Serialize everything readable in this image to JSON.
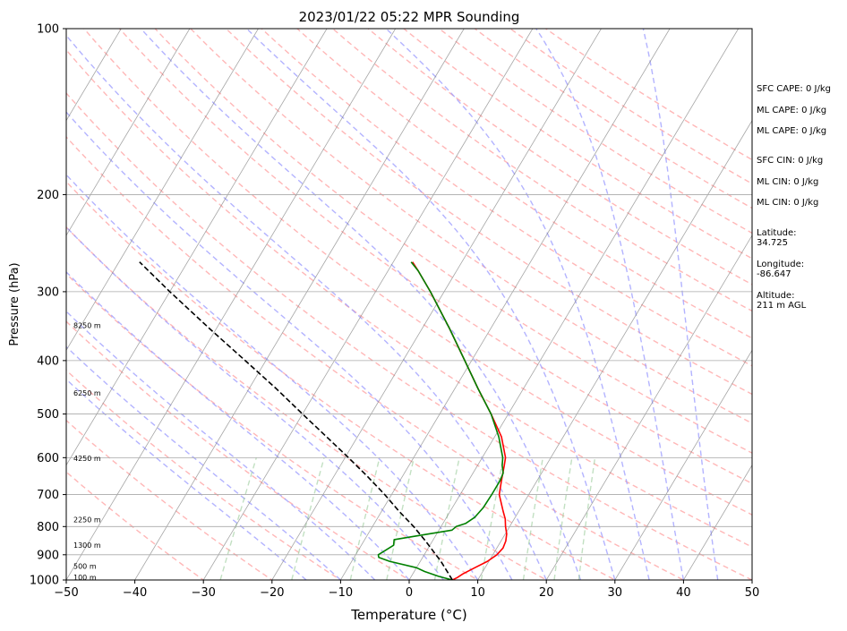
{
  "chart_data": {
    "type": "skew-t log-p sounding",
    "title": "2023/01/22 05:22 MPR Sounding",
    "xlabel": "Temperature (°C)",
    "ylabel": "Pressure (hPa)",
    "xlim": [
      -50,
      50
    ],
    "ylim": [
      1000,
      100
    ],
    "y_scale": "log",
    "grid": true,
    "x_ticks": [
      "−50",
      "−40",
      "−30",
      "−20",
      "−10",
      "0",
      "10",
      "20",
      "30",
      "40",
      "50"
    ],
    "y_ticks": [
      "100",
      "200",
      "300",
      "400",
      "500",
      "600",
      "700",
      "800",
      "900",
      "1000"
    ],
    "series": [
      {
        "color": "#ff0000",
        "points": [
          [
            1000,
            6.3
          ],
          [
            990,
            6.8
          ],
          [
            975,
            7.3
          ],
          [
            950,
            8.5
          ],
          [
            925,
            9.8
          ],
          [
            900,
            10.6
          ],
          [
            875,
            10.9
          ],
          [
            850,
            10.7
          ],
          [
            825,
            10.2
          ],
          [
            800,
            9.4
          ],
          [
            775,
            8.7
          ],
          [
            750,
            7.7
          ],
          [
            700,
            5.7
          ],
          [
            660,
            4.8
          ],
          [
            620,
            3.9
          ],
          [
            600,
            3.4
          ],
          [
            550,
            1.0
          ],
          [
            500,
            -2.5
          ],
          [
            450,
            -6.6
          ],
          [
            400,
            -11.0
          ],
          [
            350,
            -16.0
          ],
          [
            300,
            -22.0
          ],
          [
            275,
            -25.6
          ],
          [
            265,
            -27.2
          ]
        ]
      },
      {
        "color": "#008000",
        "points": [
          [
            1000,
            6.3
          ],
          [
            985,
            4.0
          ],
          [
            965,
            1.5
          ],
          [
            950,
            0.0
          ],
          [
            925,
            -4.5
          ],
          [
            910,
            -6.4
          ],
          [
            900,
            -6.7
          ],
          [
            885,
            -6.1
          ],
          [
            865,
            -5.3
          ],
          [
            845,
            -5.7
          ],
          [
            835,
            -3.5
          ],
          [
            820,
            0.0
          ],
          [
            812,
            1.9
          ],
          [
            800,
            2.2
          ],
          [
            790,
            3.3
          ],
          [
            770,
            4.1
          ],
          [
            740,
            4.5
          ],
          [
            700,
            4.6
          ],
          [
            660,
            4.6
          ],
          [
            640,
            4.4
          ],
          [
            620,
            3.6
          ],
          [
            600,
            3.0
          ],
          [
            550,
            0.6
          ],
          [
            500,
            -2.5
          ],
          [
            450,
            -6.6
          ],
          [
            400,
            -11.0
          ],
          [
            350,
            -16.0
          ],
          [
            300,
            -22.0
          ],
          [
            275,
            -25.6
          ],
          [
            265,
            -27.4
          ]
        ]
      },
      {
        "color": "#000000",
        "style": "dashed",
        "points": [
          [
            1000,
            6.3
          ],
          [
            925,
            3.0
          ],
          [
            850,
            -1.0
          ],
          [
            800,
            -4.0
          ],
          [
            750,
            -7.5
          ],
          [
            700,
            -11.0
          ],
          [
            650,
            -15.0
          ],
          [
            600,
            -19.5
          ],
          [
            550,
            -24.5
          ],
          [
            500,
            -30.0
          ],
          [
            450,
            -36.0
          ],
          [
            400,
            -43.0
          ],
          [
            350,
            -51.0
          ],
          [
            300,
            -60.0
          ],
          [
            265,
            -67.0
          ]
        ]
      }
    ],
    "height_labels": [
      {
        "label": "100 m",
        "p": 988
      },
      {
        "label": "500 m",
        "p": 944
      },
      {
        "label": "1300 m",
        "p": 865
      },
      {
        "label": "2250 m",
        "p": 777
      },
      {
        "label": "4250 m",
        "p": 601
      },
      {
        "label": "6250 m",
        "p": 458
      },
      {
        "label": "8250 m",
        "p": 345
      }
    ],
    "indices": [
      "SFC CAPE: 0 J/kg",
      "ML CAPE: 0 J/kg",
      "ML CAPE: 0 J/kg",
      "SFC CIN: 0 J/kg",
      "ML CIN: 0 J/kg",
      "ML CIN: 0 J/kg"
    ],
    "location": [
      {
        "label": "Latitude:",
        "value": "34.725"
      },
      {
        "label": "Longitude:",
        "value": "-86.647"
      },
      {
        "label": "Altitude:",
        "value": "211 m AGL"
      }
    ],
    "colors": {
      "isotherm": "#808080",
      "isobar": "#a9a9a9",
      "dry_adiabat": "#ff9999",
      "moist_adiabat": "#9999ff",
      "mixing_ratio": "#99cc99"
    }
  }
}
